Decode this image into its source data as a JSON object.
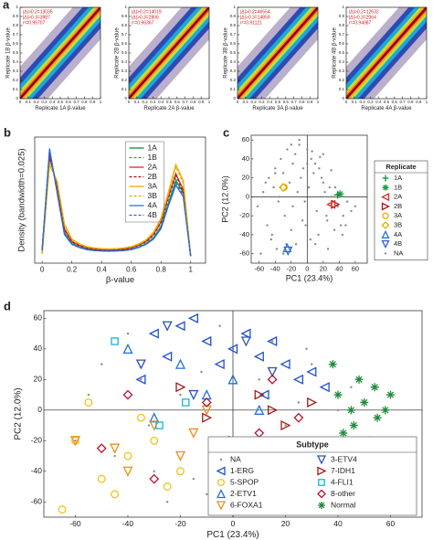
{
  "chart_data": [
    {
      "type": "density-scatter",
      "panel": "a",
      "xlabel": "Replicate 1A β-value",
      "ylabel": "Replicate 1B β-value",
      "annotations": [
        "|Δ|>0.2=13035",
        "|Δ|>0.3=3987",
        "r²=0.95707"
      ],
      "xlim": [
        0,
        1
      ],
      "ylim": [
        0,
        1
      ],
      "xticks": [
        0,
        0.1,
        0.2,
        0.3,
        0.4,
        0.5,
        0.6,
        0.7,
        0.8,
        0.9,
        1
      ],
      "yticks": [
        0,
        0.1,
        0.2,
        0.3,
        0.4,
        0.5,
        0.6,
        0.7,
        0.8,
        0.9,
        1
      ]
    },
    {
      "type": "density-scatter",
      "xlabel": "Replicate 2A β-value",
      "ylabel": "Replicate 2B β-value",
      "annotations": [
        "|Δ|>0.2=14019",
        "|Δ|>0.3=2806",
        "r²=0.96367"
      ],
      "xlim": [
        0,
        1
      ],
      "ylim": [
        0,
        1
      ],
      "xticks": [
        0,
        0.1,
        0.2,
        0.3,
        0.4,
        0.5,
        0.6,
        0.7,
        0.8,
        0.9,
        1
      ],
      "yticks": [
        0,
        0.1,
        0.2,
        0.3,
        0.4,
        0.5,
        0.6,
        0.7,
        0.8,
        0.9,
        1
      ]
    },
    {
      "type": "density-scatter",
      "xlabel": "Replicate 3A β-value",
      "ylabel": "Replicate 3B β-value",
      "annotations": [
        "|Δ|>0.2=46554",
        "|Δ|>0.3=14859",
        "r²=0.91121"
      ],
      "xlim": [
        0,
        1
      ],
      "ylim": [
        0,
        1
      ],
      "xticks": [
        0,
        0.1,
        0.2,
        0.3,
        0.4,
        0.5,
        0.6,
        0.7,
        0.8,
        0.9,
        1
      ],
      "yticks": [
        0,
        0.1,
        0.2,
        0.3,
        0.4,
        0.5,
        0.6,
        0.7,
        0.8,
        0.9,
        1
      ]
    },
    {
      "type": "density-scatter",
      "xlabel": "Replicate 4A β-value",
      "ylabel": "Replicate 4B β-value",
      "annotations": [
        "|Δ|>0.2=12632",
        "|Δ|>0.3=2064",
        "r²=0.94987"
      ],
      "xlim": [
        0,
        1
      ],
      "ylim": [
        0,
        1
      ],
      "xticks": [
        0,
        0.1,
        0.2,
        0.3,
        0.4,
        0.5,
        0.6,
        0.7,
        0.8,
        0.9,
        1
      ],
      "yticks": [
        0,
        0.1,
        0.2,
        0.3,
        0.4,
        0.5,
        0.6,
        0.7,
        0.8,
        0.9,
        1
      ]
    },
    {
      "type": "line",
      "panel": "b",
      "xlabel": "β-value",
      "ylabel": "Density (bandwidth=0.025)",
      "xlim": [
        -0.05,
        1.1
      ],
      "ylim": [
        0,
        5.5
      ],
      "xticks": [
        0,
        0.2,
        0.4,
        0.6,
        0.8,
        1
      ],
      "legend": "upper center",
      "x": [
        0,
        0.05,
        0.1,
        0.15,
        0.2,
        0.25,
        0.3,
        0.35,
        0.4,
        0.45,
        0.5,
        0.55,
        0.6,
        0.65,
        0.7,
        0.75,
        0.8,
        0.85,
        0.9,
        0.95,
        1
      ],
      "series": [
        {
          "name": "1A",
          "color": "#138a3e",
          "dash": false,
          "values": [
            0.6,
            4.9,
            3.2,
            1.3,
            0.85,
            0.7,
            0.6,
            0.56,
            0.54,
            0.53,
            0.54,
            0.56,
            0.6,
            0.7,
            0.85,
            1.1,
            1.6,
            2.6,
            3.6,
            3.1,
            0.3
          ]
        },
        {
          "name": "1B",
          "color": "#1aa34a",
          "dash": true,
          "values": [
            0.6,
            4.8,
            3.3,
            1.35,
            0.88,
            0.72,
            0.62,
            0.57,
            0.55,
            0.54,
            0.55,
            0.57,
            0.61,
            0.71,
            0.86,
            1.12,
            1.62,
            2.65,
            3.65,
            3.0,
            0.3
          ]
        },
        {
          "name": "2A",
          "color": "#d7301f",
          "dash": false,
          "values": [
            0.5,
            4.6,
            3.4,
            1.5,
            0.95,
            0.78,
            0.67,
            0.62,
            0.59,
            0.58,
            0.59,
            0.62,
            0.67,
            0.78,
            0.95,
            1.25,
            1.8,
            2.9,
            3.9,
            3.2,
            0.3
          ]
        },
        {
          "name": "2B",
          "color": "#a50f15",
          "dash": true,
          "values": [
            0.5,
            4.7,
            3.35,
            1.45,
            0.93,
            0.76,
            0.66,
            0.61,
            0.58,
            0.57,
            0.58,
            0.61,
            0.66,
            0.77,
            0.93,
            1.22,
            1.78,
            2.85,
            3.85,
            3.1,
            0.3
          ]
        },
        {
          "name": "3A",
          "color": "#f2a900",
          "dash": false,
          "values": [
            0.4,
            4.3,
            3.6,
            1.7,
            1.05,
            0.85,
            0.72,
            0.66,
            0.63,
            0.62,
            0.63,
            0.66,
            0.72,
            0.84,
            1.02,
            1.35,
            1.95,
            3.1,
            4.3,
            3.6,
            0.35
          ]
        },
        {
          "name": "3B",
          "color": "#d6b400",
          "dash": true,
          "values": [
            0.4,
            4.4,
            3.55,
            1.65,
            1.02,
            0.83,
            0.7,
            0.65,
            0.62,
            0.61,
            0.62,
            0.65,
            0.7,
            0.82,
            1.0,
            1.32,
            1.9,
            3.0,
            4.2,
            3.5,
            0.35
          ]
        },
        {
          "name": "4A",
          "color": "#1f78d1",
          "dash": false,
          "values": [
            0.55,
            5.0,
            3.1,
            1.25,
            0.82,
            0.68,
            0.59,
            0.55,
            0.53,
            0.52,
            0.53,
            0.55,
            0.59,
            0.68,
            0.82,
            1.05,
            1.5,
            2.5,
            3.4,
            2.9,
            0.3
          ]
        },
        {
          "name": "4B",
          "color": "#3b5bdb",
          "dash": true,
          "values": [
            0.55,
            4.9,
            3.15,
            1.3,
            0.84,
            0.69,
            0.6,
            0.56,
            0.54,
            0.53,
            0.54,
            0.56,
            0.6,
            0.69,
            0.84,
            1.08,
            1.55,
            2.55,
            3.5,
            2.95,
            0.3
          ]
        }
      ]
    },
    {
      "type": "scatter",
      "panel": "c",
      "xlabel": "PC1 (23.4%)",
      "ylabel": "PC2 (12.0%)",
      "legend_title": "Replicate",
      "legend": "right",
      "xlim": [
        -70,
        75
      ],
      "ylim": [
        -70,
        65
      ],
      "xticks": [
        -60,
        -40,
        -20,
        0,
        20,
        40,
        60
      ],
      "yticks": [
        -60,
        -40,
        -20,
        0,
        20,
        40,
        60
      ],
      "series": [
        {
          "name": "1A",
          "color": "#138a3e",
          "marker": "plus",
          "x": [
            38
          ],
          "y": [
            2
          ]
        },
        {
          "name": "1B",
          "color": "#1aa34a",
          "marker": "star",
          "x": [
            41
          ],
          "y": [
            3
          ]
        },
        {
          "name": "2A",
          "color": "#d7301f",
          "marker": "tri-left",
          "x": [
            30
          ],
          "y": [
            -8
          ]
        },
        {
          "name": "2B",
          "color": "#a50f15",
          "marker": "tri-right",
          "x": [
            35
          ],
          "y": [
            -8
          ]
        },
        {
          "name": "3A",
          "color": "#f2a900",
          "marker": "circle",
          "x": [
            -29
          ],
          "y": [
            10
          ]
        },
        {
          "name": "3B",
          "color": "#d6b400",
          "marker": "diamond",
          "x": [
            -30
          ],
          "y": [
            10
          ]
        },
        {
          "name": "4A",
          "color": "#1f78d1",
          "marker": "tri-up",
          "x": [
            -25
          ],
          "y": [
            -54
          ]
        },
        {
          "name": "4B",
          "color": "#3b5bdb",
          "marker": "tri-down",
          "x": [
            -24
          ],
          "y": [
            -57
          ]
        },
        {
          "name": "NA",
          "color": "#8a8a8a",
          "marker": "dot",
          "x": [
            -62,
            -55,
            -50,
            -48,
            -45,
            -42,
            -40,
            -38,
            -35,
            -33,
            -30,
            -28,
            -25,
            -22,
            -20,
            -18,
            -15,
            -12,
            -10,
            -8,
            -5,
            -3,
            0,
            2,
            5,
            8,
            10,
            12,
            15,
            18,
            20,
            22,
            25,
            28,
            30,
            33,
            35,
            38,
            40,
            45,
            50,
            55,
            -58,
            -44,
            -36,
            -26,
            -14,
            -6,
            4,
            14,
            24,
            34,
            44,
            -52,
            -30,
            -18,
            -2,
            10,
            26,
            42,
            -40,
            -20,
            0,
            20,
            -10,
            6,
            16,
            30,
            48,
            60
          ],
          "y": [
            -10,
            5,
            -30,
            20,
            -45,
            10,
            30,
            -55,
            0,
            40,
            25,
            -20,
            50,
            15,
            -35,
            35,
            45,
            5,
            55,
            20,
            30,
            -5,
            50,
            10,
            40,
            25,
            35,
            -15,
            30,
            20,
            15,
            5,
            -25,
            10,
            0,
            -5,
            10,
            -10,
            0,
            -20,
            -5,
            -15,
            -60,
            -40,
            -5,
            -50,
            -50,
            -25,
            -45,
            -40,
            -20,
            -35,
            -40,
            15,
            -60,
            -10,
            -30,
            -50,
            -55,
            -30,
            25,
            55,
            35,
            45,
            60,
            48,
            42,
            28,
            -30,
            -10
          ]
        }
      ]
    },
    {
      "type": "scatter",
      "panel": "d",
      "xlabel": "PC1 (23.4%)",
      "ylabel": "PC2 (12.0%)",
      "legend_title": "Subtype",
      "legend": "lower right",
      "xlim": [
        -72,
        72
      ],
      "ylim": [
        -70,
        65
      ],
      "xticks": [
        -60,
        -40,
        -20,
        0,
        20,
        40,
        60
      ],
      "yticks": [
        -60,
        -40,
        -20,
        0,
        20,
        40,
        60
      ],
      "series": [
        {
          "name": "NA",
          "color": "#8a8a8a",
          "marker": "dot",
          "x": [
            -60,
            -50,
            -40,
            -30,
            -20,
            -10,
            0,
            10,
            20,
            30,
            40,
            50,
            -55,
            -45,
            -35,
            -25,
            -15,
            -5,
            5,
            15,
            25,
            35,
            45,
            55,
            -32,
            -12,
            8,
            28
          ],
          "y": [
            -20,
            30,
            50,
            -40,
            10,
            -55,
            40,
            20,
            -10,
            30,
            0,
            -20,
            10,
            -30,
            20,
            -60,
            -45,
            55,
            -25,
            45,
            5,
            -35,
            15,
            -5,
            -10,
            25,
            -50,
            40
          ]
        },
        {
          "name": "1-ERG",
          "color": "#1f4fd1",
          "marker": "tri-left",
          "x": [
            -30,
            -20,
            -10,
            0,
            10,
            20,
            25,
            30,
            -25,
            -15,
            5,
            15,
            -5,
            35,
            -35,
            12
          ],
          "y": [
            50,
            55,
            45,
            40,
            35,
            30,
            20,
            25,
            35,
            60,
            50,
            45,
            30,
            15,
            20,
            10
          ]
        },
        {
          "name": "5-SPOP",
          "color": "#f0c419",
          "marker": "circle",
          "x": [
            -65,
            -50,
            -55,
            -40,
            -45,
            -30,
            -20,
            -60,
            -35,
            -25
          ],
          "y": [
            -65,
            -45,
            5,
            -30,
            -55,
            -20,
            -40,
            -20,
            -5,
            -50
          ]
        },
        {
          "name": "2-ETV1",
          "color": "#1f6fe0",
          "marker": "tri-up",
          "x": [
            -40,
            -20,
            0,
            -30,
            10,
            -10
          ],
          "y": [
            40,
            30,
            20,
            -5,
            0,
            10
          ]
        },
        {
          "name": "6-FOXA1",
          "color": "#f08c1a",
          "marker": "tri-down",
          "x": [
            -60,
            -40,
            -30,
            -20,
            -10,
            -5,
            -45,
            -15
          ],
          "y": [
            -20,
            -40,
            -10,
            -30,
            0,
            -45,
            -25,
            -15
          ]
        },
        {
          "name": "3-ETV4",
          "color": "#2b50b8",
          "marker": "tri-down",
          "x": [
            -35,
            -15,
            5,
            -25,
            15
          ],
          "y": [
            30,
            10,
            45,
            55,
            25
          ]
        },
        {
          "name": "7-IDH1",
          "color": "#a01b1b",
          "marker": "tri-right",
          "x": [
            -10,
            0,
            10,
            20,
            30,
            5,
            -20,
            25,
            -5,
            15
          ],
          "y": [
            -5,
            -20,
            10,
            -10,
            5,
            -30,
            15,
            -25,
            -35,
            0
          ]
        },
        {
          "name": "4-FLI1",
          "color": "#17b3d6",
          "marker": "square",
          "x": [
            -45,
            -18,
            -28
          ],
          "y": [
            45,
            5,
            -10
          ]
        },
        {
          "name": "8-other",
          "color": "#b5122e",
          "marker": "diamond",
          "x": [
            -50,
            -30,
            -10,
            10,
            25,
            -40,
            0,
            15
          ],
          "y": [
            -25,
            -45,
            5,
            -15,
            -5,
            10,
            -40,
            20
          ]
        },
        {
          "name": "Normal",
          "color": "#1e8c3a",
          "marker": "star",
          "x": [
            40,
            45,
            50,
            55,
            60,
            42,
            48,
            52,
            58,
            38,
            46,
            54
          ],
          "y": [
            10,
            0,
            5,
            -5,
            10,
            -15,
            20,
            -20,
            0,
            30,
            -10,
            15
          ]
        }
      ]
    }
  ]
}
